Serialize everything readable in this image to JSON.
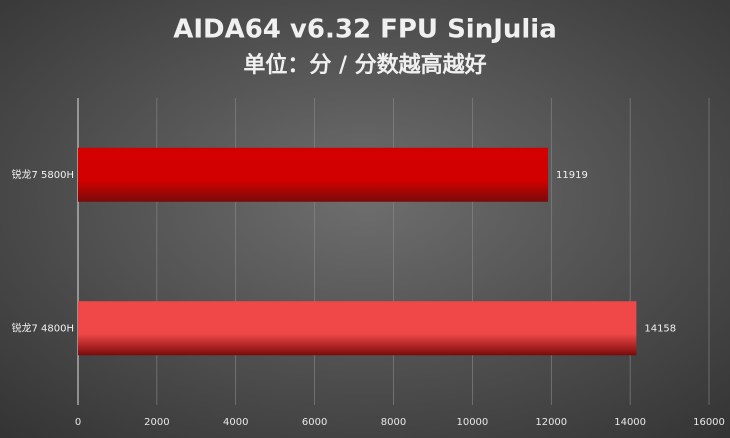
{
  "chart_data": {
    "type": "bar",
    "orientation": "horizontal",
    "title": "AIDA64 v6.32 FPU SinJulia",
    "subtitle": "单位：分 / 分数越高越好",
    "categories": [
      "锐龙7 5800H",
      "锐龙7 4800H"
    ],
    "values": [
      11919,
      14158
    ],
    "colors": [
      "#d30000",
      "#f04848"
    ],
    "xlim": [
      0,
      16000
    ],
    "xticks": [
      0,
      2000,
      4000,
      6000,
      8000,
      10000,
      12000,
      14000,
      16000
    ],
    "grid": true
  }
}
